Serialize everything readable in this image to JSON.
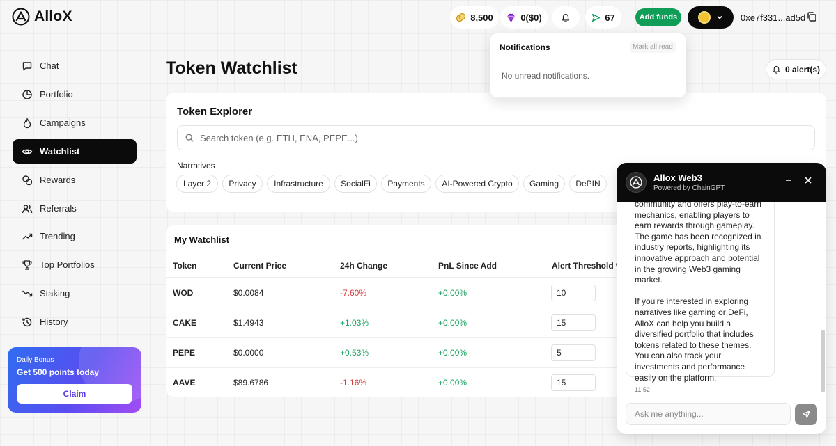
{
  "header": {
    "logo_text": "AlloX",
    "points": "8,500",
    "gems": "0($0)",
    "sent_count": "67",
    "add_funds_label": "Add funds",
    "wallet_address": "0xe7f331...ad5d"
  },
  "sidebar": {
    "items": [
      {
        "label": "Chat",
        "icon": "chat-icon"
      },
      {
        "label": "Portfolio",
        "icon": "pie-chart-icon"
      },
      {
        "label": "Campaigns",
        "icon": "flame-icon"
      },
      {
        "label": "Watchlist",
        "icon": "eye-icon",
        "active": true
      },
      {
        "label": "Rewards",
        "icon": "coins-icon"
      },
      {
        "label": "Referrals",
        "icon": "users-icon"
      },
      {
        "label": "Trending",
        "icon": "trending-up-icon"
      },
      {
        "label": "Top Portfolios",
        "icon": "trophy-icon"
      },
      {
        "label": "Staking",
        "icon": "trending-down-icon"
      },
      {
        "label": "History",
        "icon": "history-icon"
      }
    ],
    "bonus": {
      "label": "Daily Bonus",
      "title": "Get 500 points today",
      "claim_label": "Claim"
    }
  },
  "main": {
    "title": "Token Watchlist",
    "alerts_label": "0 alert(s)",
    "explorer": {
      "title": "Token Explorer",
      "search_placeholder": "Search token (e.g. ETH, ENA, PEPE...)",
      "narratives_label": "Narratives",
      "narratives": [
        "Layer 2",
        "Privacy",
        "Infrastructure",
        "SocialFi",
        "Payments",
        "AI-Powered Crypto",
        "Gaming",
        "DePIN"
      ]
    },
    "watchlist": {
      "title": "My Watchlist",
      "columns": [
        "Token",
        "Current Price",
        "24h Change",
        "PnL Since Add",
        "Alert Threshold %"
      ],
      "rows": [
        {
          "token": "WOD",
          "price": "$0.0084",
          "change": "-7.60%",
          "change_dir": "neg",
          "pnl": "+0.00%",
          "threshold": "10"
        },
        {
          "token": "CAKE",
          "price": "$1.4943",
          "change": "+1.03%",
          "change_dir": "pos",
          "pnl": "+0.00%",
          "threshold": "15"
        },
        {
          "token": "PEPE",
          "price": "$0.0000",
          "change": "+0.53%",
          "change_dir": "pos",
          "pnl": "+0.00%",
          "threshold": "5"
        },
        {
          "token": "AAVE",
          "price": "$89.6786",
          "change": "-1.16%",
          "change_dir": "neg",
          "pnl": "+0.00%",
          "threshold": "15"
        }
      ]
    }
  },
  "notifications": {
    "title": "Notifications",
    "mark_all_read": "Mark all read",
    "empty_text": "No unread notifications."
  },
  "chat": {
    "name": "Allox Web3",
    "powered_by": "Powered by ChainGPT",
    "message_part1": "community and offers play-to-earn mechanics, enabling players to earn rewards through gameplay. The game has been recognized in industry reports, highlighting its innovative approach and potential in the growing Web3 gaming market.",
    "message_part2": "If you're interested in exploring narratives like gaming or DeFi, AlloX can help you build a diversified portfolio that includes tokens related to these themes. You can also track your investments and performance easily on the platform.",
    "time": "11:52",
    "input_placeholder": "Ask me anything..."
  },
  "colors": {
    "accent_green": "#0f9d58",
    "negative": "#d63b3b",
    "positive": "#19a15f",
    "dark": "#0b0b0b"
  }
}
